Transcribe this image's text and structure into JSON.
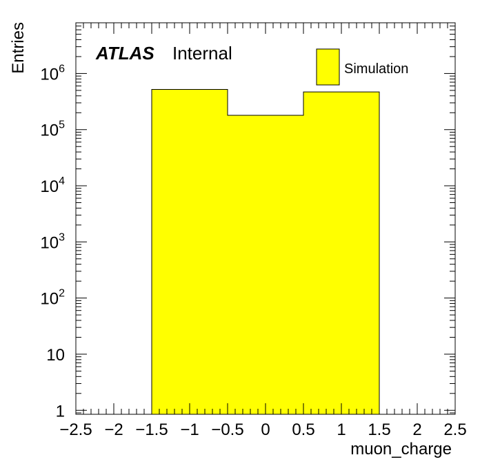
{
  "chart_data": {
    "type": "bar",
    "style": "histogram",
    "bin_edges": [
      -1.5,
      -0.5,
      0.5,
      1.5
    ],
    "values": [
      520000,
      180000,
      470000
    ],
    "x": [
      -1,
      0,
      1
    ],
    "xlabel": "muon_charge",
    "ylabel": "Entries",
    "xlim": [
      -2.5,
      2.5
    ],
    "ylim": [
      0.85,
      8000000
    ],
    "yscale": "log",
    "x_ticks": [
      -2.5,
      -2,
      -1.5,
      -1,
      -0.5,
      0,
      0.5,
      1,
      1.5,
      2,
      2.5
    ],
    "x_tick_labels": [
      "−2.5",
      "−2",
      "−1.5",
      "−1",
      "−0.5",
      "0",
      "0.5",
      "1",
      "1.5",
      "2",
      "2.5"
    ],
    "y_ticks": [
      1,
      10,
      100,
      1000,
      10000,
      100000,
      1000000
    ],
    "y_tick_labels": [
      {
        "base": "1",
        "exp": ""
      },
      {
        "base": "10",
        "exp": ""
      },
      {
        "base": "10",
        "exp": "2"
      },
      {
        "base": "10",
        "exp": "3"
      },
      {
        "base": "10",
        "exp": "4"
      },
      {
        "base": "10",
        "exp": "5"
      },
      {
        "base": "10",
        "exp": "6"
      }
    ],
    "grid": false,
    "fill_color": "#ffff00",
    "line_color": "#000000",
    "legend": {
      "position": "top-right",
      "entries": [
        {
          "label": "Simulation",
          "color": "#ffff00"
        }
      ]
    },
    "annotation": {
      "bold_italic": "ATLAS",
      "normal": "Internal"
    }
  }
}
